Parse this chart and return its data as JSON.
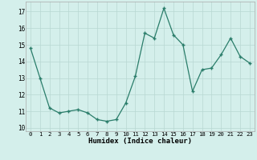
{
  "x": [
    0,
    1,
    2,
    3,
    4,
    5,
    6,
    7,
    8,
    9,
    10,
    11,
    12,
    13,
    14,
    15,
    16,
    17,
    18,
    19,
    20,
    21,
    22,
    23
  ],
  "y": [
    14.8,
    13.0,
    11.2,
    10.9,
    11.0,
    11.1,
    10.9,
    10.5,
    10.4,
    10.5,
    11.5,
    13.1,
    15.7,
    15.4,
    17.2,
    15.6,
    15.0,
    12.2,
    13.5,
    13.6,
    14.4,
    15.4,
    14.3,
    13.9
  ],
  "xlabel": "Humidex (Indice chaleur)",
  "ylim": [
    9.8,
    17.6
  ],
  "yticks": [
    10,
    11,
    12,
    13,
    14,
    15,
    16,
    17
  ],
  "xticks": [
    0,
    1,
    2,
    3,
    4,
    5,
    6,
    7,
    8,
    9,
    10,
    11,
    12,
    13,
    14,
    15,
    16,
    17,
    18,
    19,
    20,
    21,
    22,
    23
  ],
  "line_color": "#2a7d6a",
  "marker_color": "#2a7d6a",
  "bg_color": "#d4efeb",
  "grid_color": "#b8d8d2"
}
